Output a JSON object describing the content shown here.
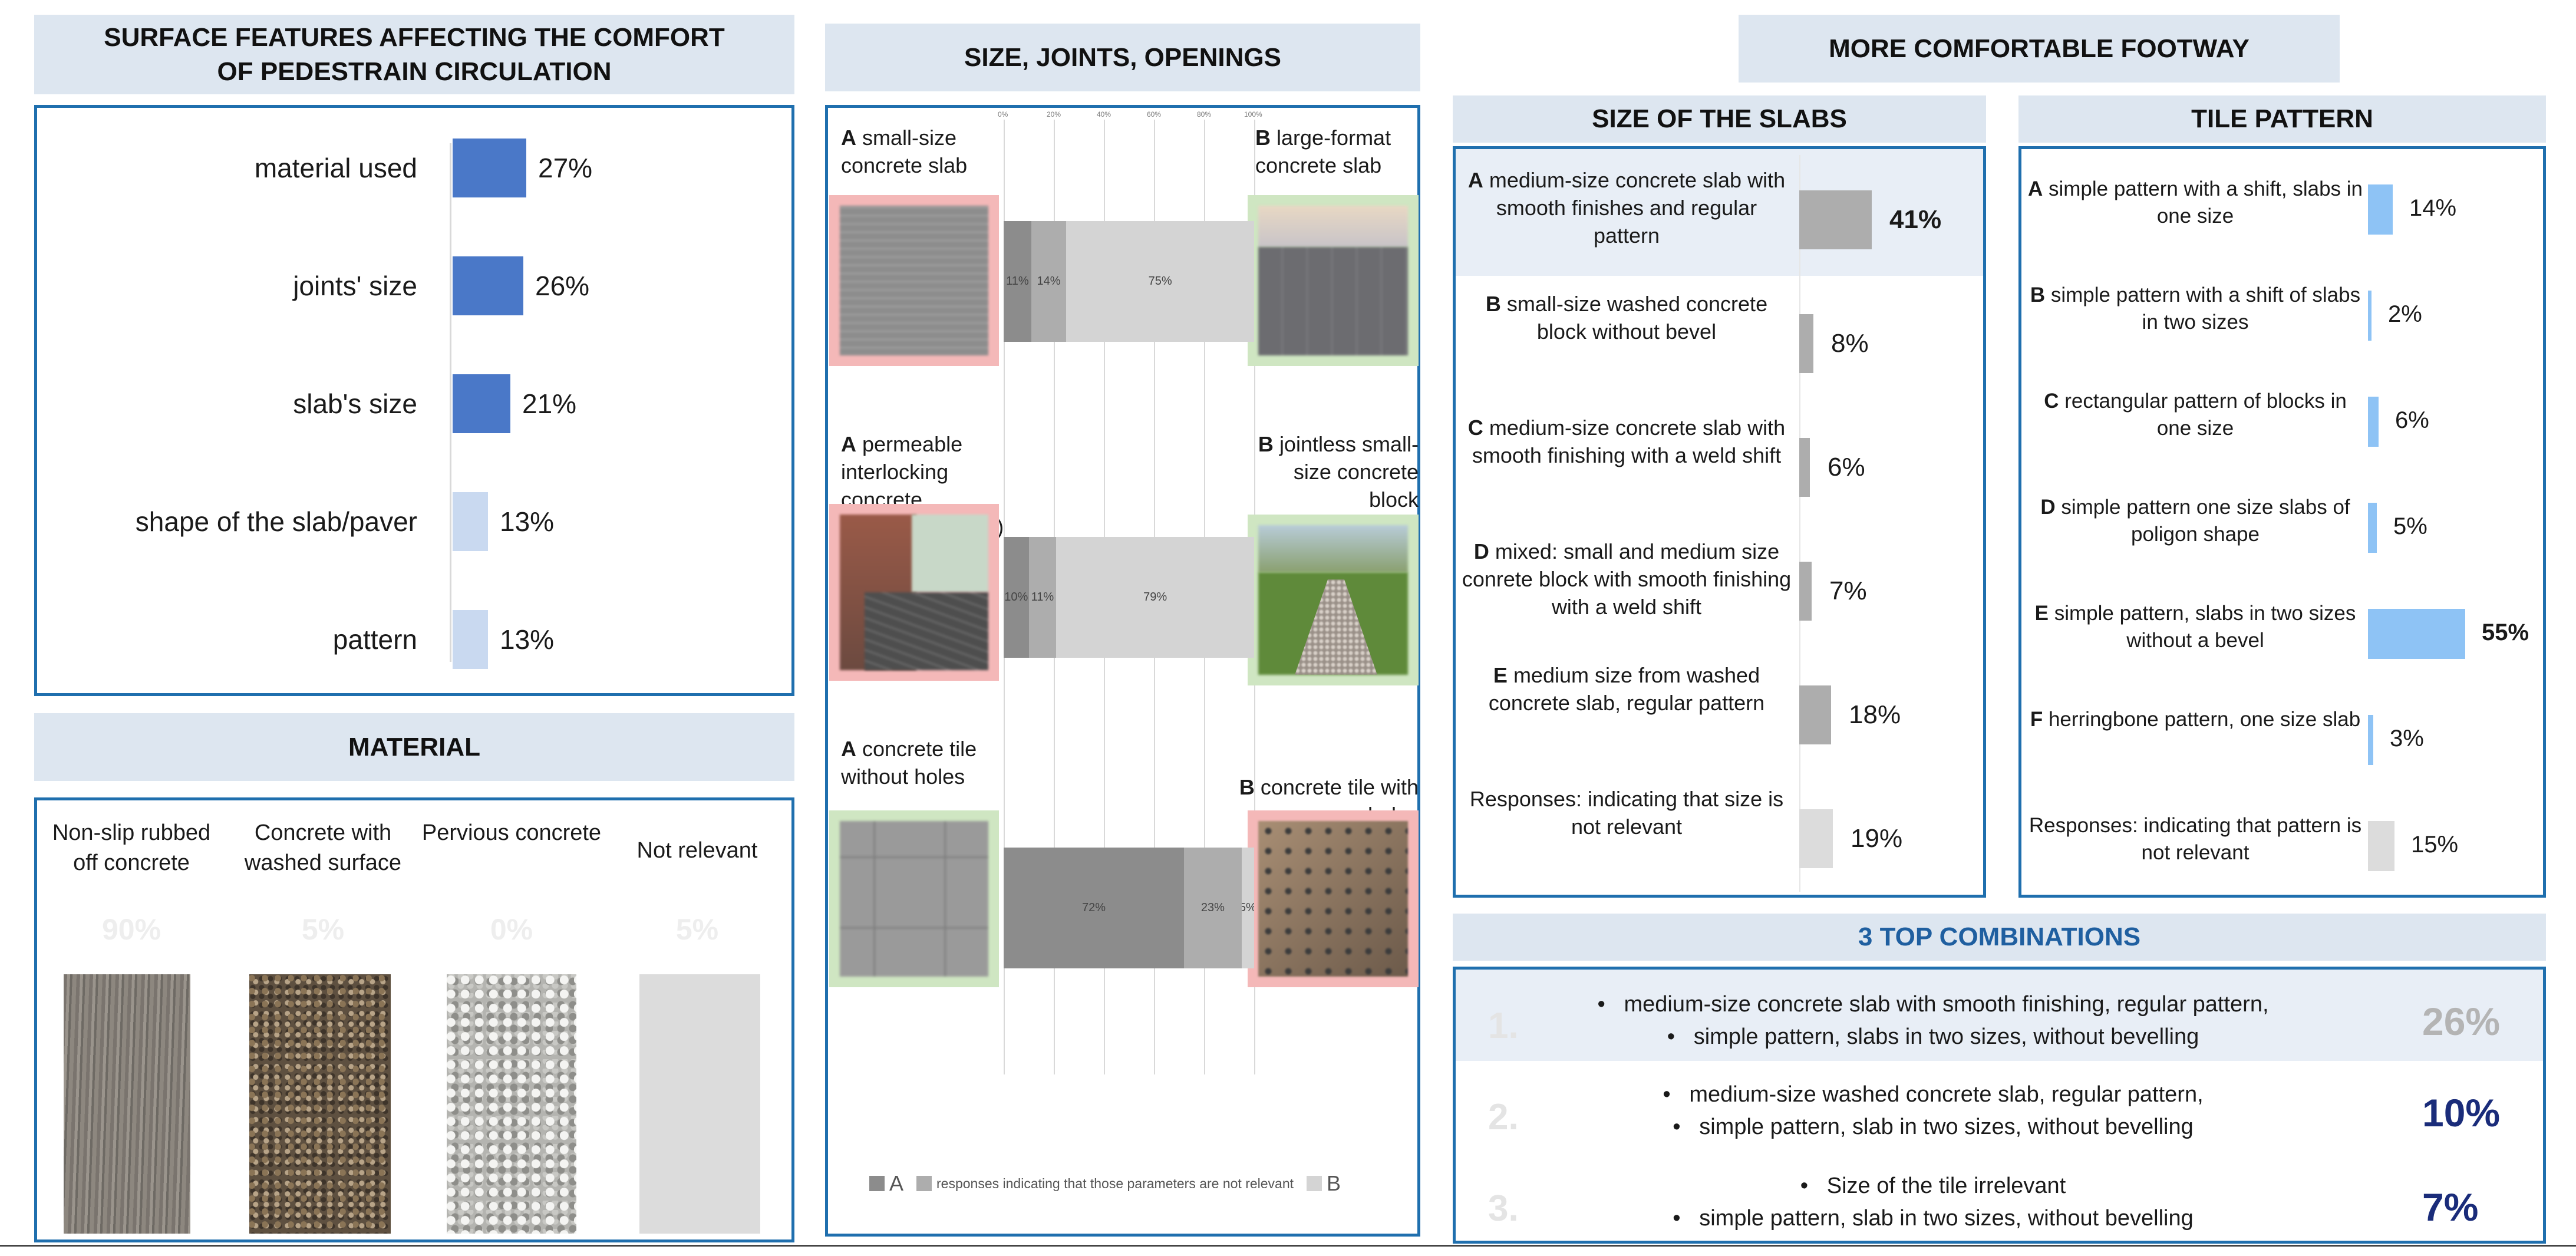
{
  "colors": {
    "accent": "#1f6fae",
    "header_bg": "#dde6f0",
    "bar_blue": "#4a78c8",
    "bar_light": "#c9d9f0",
    "gray_dark": "#8c8c8c",
    "gray_mid": "#adadad",
    "gray_light": "#d4d4d4",
    "tile_blue": "#8ec3f5",
    "navy": "#1a2c7a"
  },
  "panel_features": {
    "title": "SURFACE FEATURES AFFECTING THE COMFORT OF PEDESTRAIN CIRCULATION",
    "items": [
      {
        "label": "material used",
        "value": "27%",
        "fraction": 0.27
      },
      {
        "label": "joints' size",
        "value": "26%",
        "fraction": 0.26
      },
      {
        "label": "slab's size",
        "value": "21%",
        "fraction": 0.21
      },
      {
        "label": "shape of the slab/paver",
        "value": "13%",
        "fraction": 0.13
      },
      {
        "label": "pattern",
        "value": "13%",
        "fraction": 0.13
      }
    ]
  },
  "panel_material": {
    "title": "MATERIAL",
    "items": [
      {
        "label": "Non-slip rubbed off concrete",
        "value": "90%"
      },
      {
        "label": "Concrete with washed surface",
        "value": "5%"
      },
      {
        "label": "Pervious concrete",
        "value": "0%"
      },
      {
        "label": "Not relevant",
        "value": "5%"
      }
    ]
  },
  "panel_size": {
    "title": "SIZE, JOINTS, OPENINGS",
    "axis_ticks": [
      "0%",
      "20%",
      "40%",
      "60%",
      "80%",
      "100%"
    ],
    "rows": [
      {
        "a_letter": "A",
        "a_label": "small-size concrete slab",
        "b_letter": "B",
        "b_label": "large-format concrete slab",
        "segments": [
          {
            "label": "11%",
            "value": 11
          },
          {
            "label": "14%",
            "value": 14
          },
          {
            "label": "75%",
            "value": 75
          }
        ]
      },
      {
        "a_letter": "A",
        "a_label": "permeable interlocking concrete pavement (PICP)",
        "b_letter": "B",
        "b_label": "jointless small-size concrete block",
        "segments": [
          {
            "label": "10%",
            "value": 10
          },
          {
            "label": "11%",
            "value": 11
          },
          {
            "label": "79%",
            "value": 79
          }
        ]
      },
      {
        "a_letter": "A",
        "a_label": "concrete tile without holes",
        "b_letter": "B",
        "b_label": "concrete tile with holes",
        "segments": [
          {
            "label": "72%",
            "value": 72
          },
          {
            "label": "23%",
            "value": 23
          },
          {
            "label": "5%",
            "value": 5
          }
        ]
      }
    ],
    "legend": {
      "a": "A",
      "mid": "responses indicating that those parameters are not relevant",
      "b": "B"
    }
  },
  "panel_comfortable": {
    "title": "MORE COMFORTABLE FOOTWAY"
  },
  "panel_slabs": {
    "title": "SIZE OF THE SLABS",
    "items": [
      {
        "letter": "A",
        "text": "medium-size concrete slab with smooth finishes and regular pattern",
        "value": "41%",
        "fraction": 0.41
      },
      {
        "letter": "B",
        "text": "small-size washed concrete block without bevel",
        "value": "8%",
        "fraction": 0.08
      },
      {
        "letter": "C",
        "text": "medium-size concrete slab with smooth finishing with a weld shift",
        "value": "6%",
        "fraction": 0.06
      },
      {
        "letter": "D",
        "text": "mixed: small and medium size  conrete block with smooth finishing with a weld shift",
        "value": "7%",
        "fraction": 0.07
      },
      {
        "letter": "E",
        "text": "medium size from washed concrete slab, regular pattern",
        "value": "18%",
        "fraction": 0.18
      },
      {
        "letter": "",
        "text": "Responses: indicating that size is not relevant",
        "value": "19%",
        "fraction": 0.19
      }
    ]
  },
  "panel_tiles": {
    "title": "TILE PATTERN",
    "items": [
      {
        "letter": "A",
        "text": "simple pattern with a shift, slabs in one size",
        "value": "14%",
        "fraction": 0.14
      },
      {
        "letter": "B",
        "text": "simple pattern with a shift of slabs in two sizes",
        "value": "2%",
        "fraction": 0.02
      },
      {
        "letter": "C",
        "text": "rectangular pattern of blocks  in one size",
        "value": "6%",
        "fraction": 0.06
      },
      {
        "letter": "D",
        "text": "simple pattern one size slabs of poligon shape",
        "value": "5%",
        "fraction": 0.05
      },
      {
        "letter": "E",
        "text": "simple pattern, slabs in two sizes without a bevel",
        "value": "55%",
        "fraction": 0.55
      },
      {
        "letter": "F",
        "text": "herringbone pattern, one size slab",
        "value": "3%",
        "fraction": 0.03
      },
      {
        "letter": "",
        "text": "Responses: indicating that pattern is not relevant",
        "value": "15%",
        "fraction": 0.15
      }
    ]
  },
  "panel_top": {
    "title": "3 TOP COMBINATIONS",
    "items": [
      {
        "rank": "1.",
        "line1": "medium-size concrete slab with smooth finishing, regular pattern,",
        "line2": "simple pattern, slabs in two sizes, without bevelling",
        "value": "26%"
      },
      {
        "rank": "2.",
        "line1": "medium-size washed concrete slab, regular pattern,",
        "line2": "simple pattern, slab in two sizes, without bevelling",
        "value": "10%"
      },
      {
        "rank": "3.",
        "line1": "Size of the tile irrelevant",
        "line2": "simple pattern, slab in two sizes, without bevelling",
        "value": "7%"
      }
    ]
  }
}
